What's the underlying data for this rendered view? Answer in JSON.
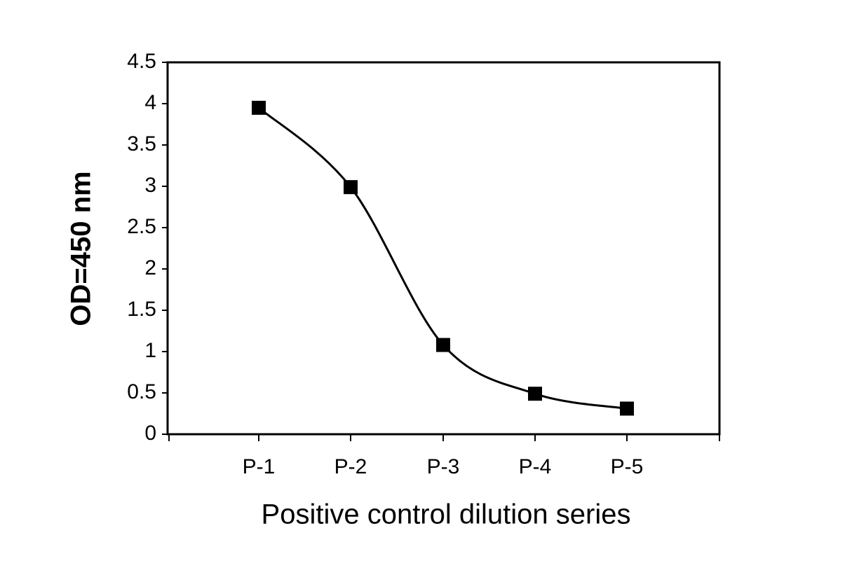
{
  "chart_data": {
    "type": "line",
    "categories": [
      "P-1",
      "P-2",
      "P-3",
      "P-4",
      "P-5"
    ],
    "series": [
      {
        "values": [
          3.95,
          2.99,
          1.08,
          0.49,
          0.31
        ]
      }
    ],
    "xlabel": "Positive control dilution series",
    "ylabel": "OD=450 nm",
    "ylim": [
      0,
      4.5
    ],
    "yticks": [
      "0",
      "0.5",
      "1",
      "1.5",
      "2",
      "2.5",
      "3",
      "3.5",
      "4",
      "4.5"
    ],
    "grid": false,
    "marker": "square",
    "line_style": "smoothed",
    "colors": {
      "line": "#000000",
      "marker": "#000000",
      "axis": "#000000"
    }
  }
}
